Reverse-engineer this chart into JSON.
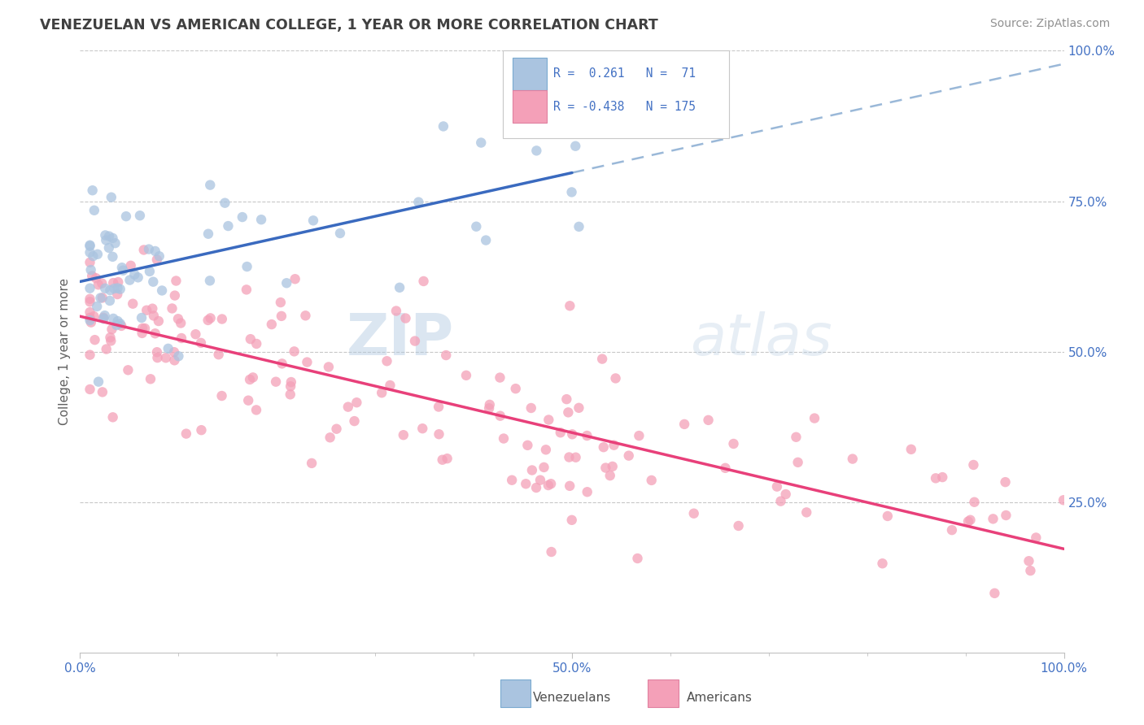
{
  "title": "VENEZUELAN VS AMERICAN COLLEGE, 1 YEAR OR MORE CORRELATION CHART",
  "source_text": "Source: ZipAtlas.com",
  "ylabel": "College, 1 year or more",
  "color_venezuelan": "#aac4e0",
  "color_american": "#f4a0b8",
  "color_line_venezuelan": "#3a6abf",
  "color_line_american": "#e8407a",
  "color_dash": "#9ab8d8",
  "background_color": "#ffffff",
  "watermark_zip": "ZIP",
  "watermark_atlas": "atlas",
  "legend_r1": "R=  0.261",
  "legend_n1": "N=  71",
  "legend_r2": "R= -0.438",
  "legend_n2": "N= 175"
}
